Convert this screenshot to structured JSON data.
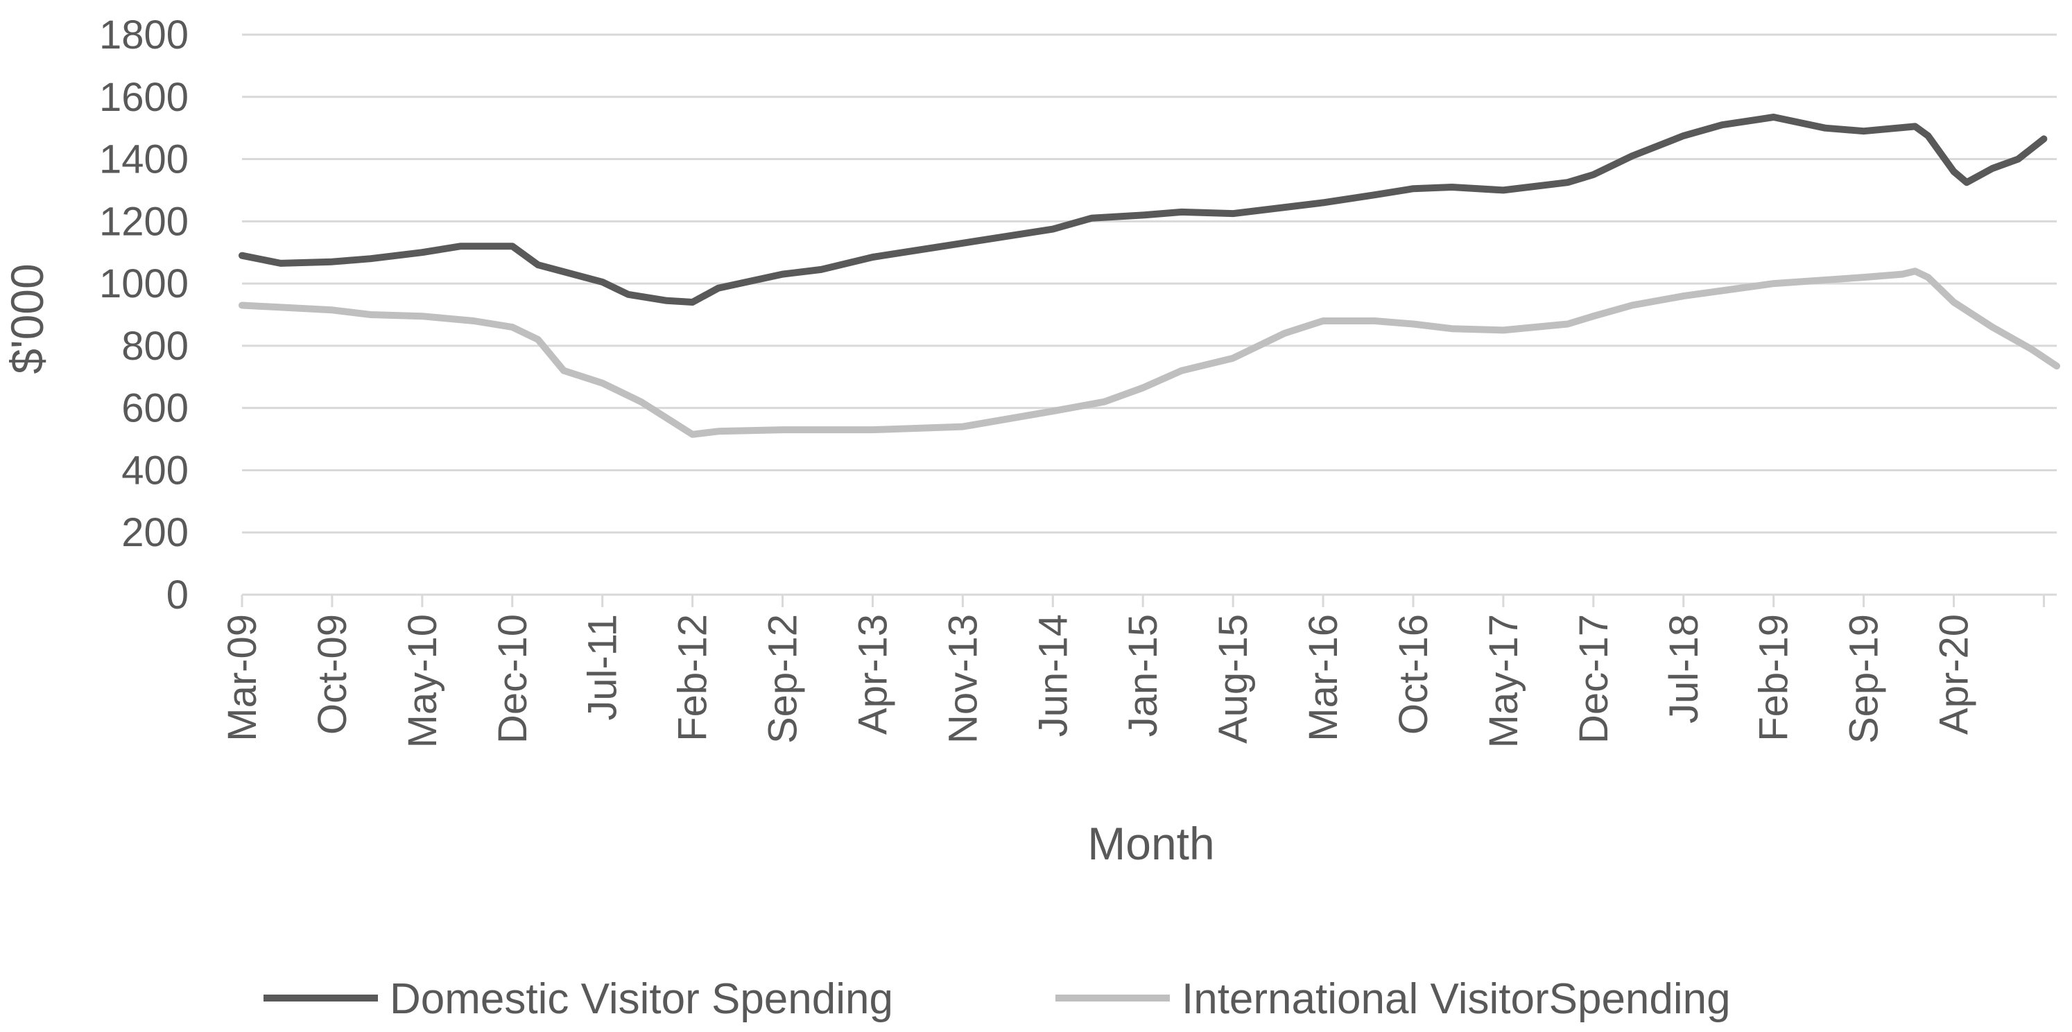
{
  "chart_data": {
    "type": "line",
    "title": "",
    "xlabel": "Month",
    "ylabel": "$'000",
    "ylim": [
      0,
      1800
    ],
    "yticks": [
      "0",
      "200",
      "400",
      "600",
      "800",
      "1000",
      "1200",
      "1400",
      "1600",
      "1800"
    ],
    "grid": true,
    "legend_position": "bottom",
    "x_tick_labels": [
      "Mar-09",
      "Oct-09",
      "May-10",
      "Dec-10",
      "Jul-11",
      "Feb-12",
      "Sep-12",
      "Apr-13",
      "Nov-13",
      "Jun-14",
      "Jan-15",
      "Aug-15",
      "Mar-16",
      "Oct-16",
      "May-17",
      "Dec-17",
      "Jul-18",
      "Feb-19",
      "Sep-19",
      "Apr-20"
    ],
    "x_tick_interval_months": 7,
    "series": [
      {
        "name": "Domestic Visitor Spending",
        "color": "#595959",
        "points": [
          [
            "Mar-09",
            1090
          ],
          [
            "Jun-09",
            1065
          ],
          [
            "Oct-09",
            1070
          ],
          [
            "Jan-10",
            1080
          ],
          [
            "May-10",
            1100
          ],
          [
            "Aug-10",
            1120
          ],
          [
            "Dec-10",
            1120
          ],
          [
            "Feb-11",
            1060
          ],
          [
            "Jul-11",
            1005
          ],
          [
            "Sep-11",
            965
          ],
          [
            "Dec-11",
            945
          ],
          [
            "Feb-12",
            940
          ],
          [
            "Apr-12",
            985
          ],
          [
            "Sep-12",
            1030
          ],
          [
            "Dec-12",
            1045
          ],
          [
            "Apr-13",
            1085
          ],
          [
            "Nov-13",
            1130
          ],
          [
            "Jun-14",
            1175
          ],
          [
            "Sep-14",
            1210
          ],
          [
            "Jan-15",
            1220
          ],
          [
            "Apr-15",
            1230
          ],
          [
            "Aug-15",
            1225
          ],
          [
            "Mar-16",
            1260
          ],
          [
            "Jul-16",
            1285
          ],
          [
            "Oct-16",
            1305
          ],
          [
            "Jan-17",
            1310
          ],
          [
            "May-17",
            1300
          ],
          [
            "Oct-17",
            1325
          ],
          [
            "Dec-17",
            1350
          ],
          [
            "Mar-18",
            1410
          ],
          [
            "Jul-18",
            1475
          ],
          [
            "Oct-18",
            1510
          ],
          [
            "Feb-19",
            1535
          ],
          [
            "Jun-19",
            1500
          ],
          [
            "Sep-19",
            1490
          ],
          [
            "Jan-20",
            1505
          ],
          [
            "Feb-20",
            1475
          ],
          [
            "Apr-20",
            1360
          ],
          [
            "May-20",
            1325
          ],
          [
            "Jul-20",
            1370
          ],
          [
            "Sep-20",
            1400
          ],
          [
            "Nov-20",
            1465
          ]
        ]
      },
      {
        "name": "International VisitorSpending",
        "color": "#bfbfbf",
        "points": [
          [
            "Mar-09",
            930
          ],
          [
            "Oct-09",
            915
          ],
          [
            "Jan-10",
            900
          ],
          [
            "May-10",
            895
          ],
          [
            "Sep-10",
            880
          ],
          [
            "Dec-10",
            860
          ],
          [
            "Feb-11",
            820
          ],
          [
            "Apr-11",
            720
          ],
          [
            "Jul-11",
            680
          ],
          [
            "Oct-11",
            620
          ],
          [
            "Feb-12",
            515
          ],
          [
            "Apr-12",
            525
          ],
          [
            "Sep-12",
            530
          ],
          [
            "Apr-13",
            530
          ],
          [
            "Nov-13",
            540
          ],
          [
            "Jun-14",
            590
          ],
          [
            "Oct-14",
            620
          ],
          [
            "Jan-15",
            665
          ],
          [
            "Apr-15",
            720
          ],
          [
            "Aug-15",
            760
          ],
          [
            "Dec-15",
            840
          ],
          [
            "Mar-16",
            880
          ],
          [
            "Jul-16",
            880
          ],
          [
            "Oct-16",
            870
          ],
          [
            "Jan-17",
            855
          ],
          [
            "May-17",
            850
          ],
          [
            "Oct-17",
            870
          ],
          [
            "Dec-17",
            895
          ],
          [
            "Mar-18",
            930
          ],
          [
            "Jul-18",
            960
          ],
          [
            "Feb-19",
            1000
          ],
          [
            "Sep-19",
            1020
          ],
          [
            "Dec-19",
            1030
          ],
          [
            "Jan-20",
            1040
          ],
          [
            "Feb-20",
            1020
          ],
          [
            "Apr-20",
            940
          ],
          [
            "Jul-20",
            860
          ],
          [
            "Oct-20",
            790
          ],
          [
            "Dec-20",
            735
          ]
        ]
      }
    ]
  }
}
